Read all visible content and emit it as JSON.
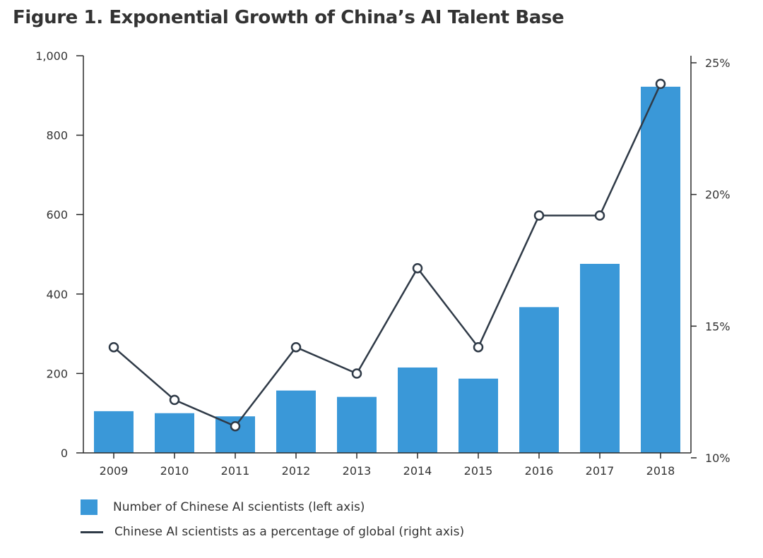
{
  "chart_data": {
    "type": "bar",
    "title": "Figure 1. Exponential Growth of China’s AI Talent Base",
    "categories": [
      "2009",
      "2010",
      "2011",
      "2012",
      "2013",
      "2014",
      "2015",
      "2016",
      "2017",
      "2018"
    ],
    "series": [
      {
        "name": "Number of Chinese AI scientists (left axis)",
        "type": "bar",
        "axis": "left",
        "values": [
          105,
          100,
          92,
          157,
          141,
          215,
          187,
          367,
          476,
          922
        ]
      },
      {
        "name": "Chinese AI scientists as a percentage of global (right axis)",
        "type": "line",
        "axis": "right",
        "values": [
          14.2,
          12.2,
          11.2,
          14.2,
          13.2,
          17.2,
          14.2,
          19.2,
          19.2,
          24.2
        ]
      }
    ],
    "left_axis": {
      "ylim": [
        0,
        1000
      ],
      "ticks": [
        0,
        200,
        400,
        600,
        800,
        1000
      ],
      "tick_labels": [
        "0",
        "200",
        "400",
        "600",
        "800",
        "1,000"
      ]
    },
    "right_axis": {
      "ylim": [
        10,
        25
      ],
      "ticks": [
        10,
        15,
        20,
        25
      ],
      "tick_labels": [
        "10%",
        "15%",
        "20%",
        "25%"
      ]
    },
    "grid": false,
    "legend_position": "bottom-left",
    "colors": {
      "bar": "#3a98d8",
      "line": "#2f3a47",
      "axis": "#2a2a2a"
    }
  }
}
